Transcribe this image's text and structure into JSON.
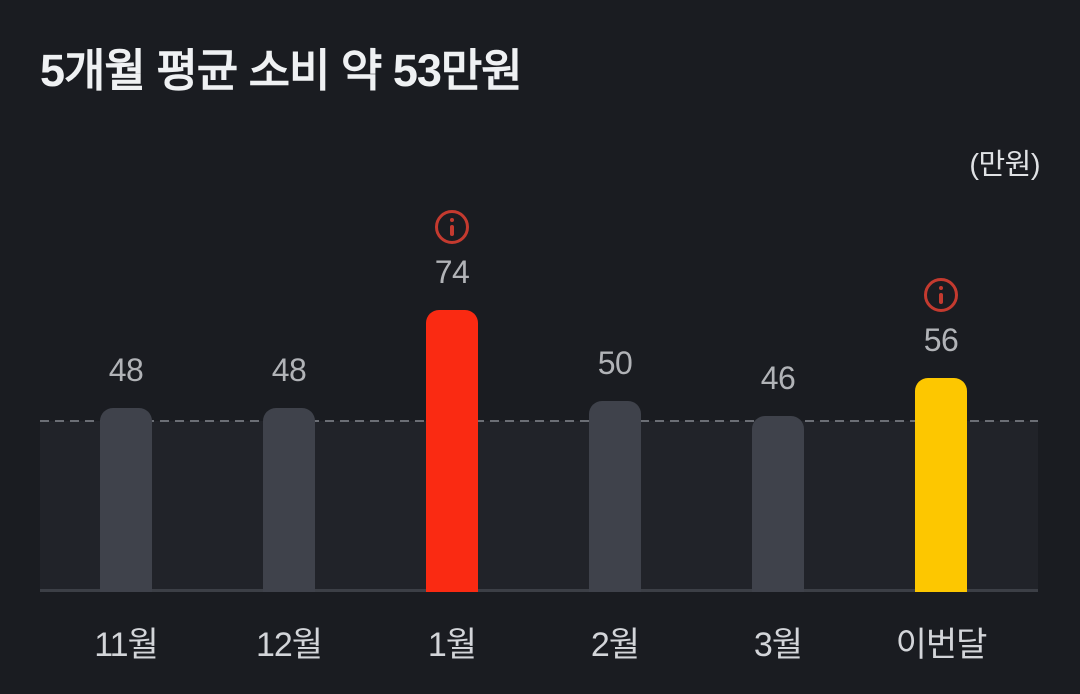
{
  "header": {
    "title": "5개월 평균 소비 약 53만원",
    "unit_label": "(만원)"
  },
  "colors": {
    "background": "#1A1C21",
    "band_background": "#212329",
    "baseline": "#3C3F46",
    "dashed_average_line": "#6B6E75",
    "bar_default": "#3F424B",
    "bar_highlight_red": "#FA2A12",
    "bar_highlight_yellow": "#FDC700",
    "value_label": "#B1B3B7",
    "axis_label": "#D3D5D9",
    "info_icon": "#C43A2F",
    "title_text": "#EFF1F3"
  },
  "chart_data": {
    "type": "bar",
    "title": "5개월 평균 소비 약 53만원",
    "unit": "만원",
    "ylabel": "(만원)",
    "categories": [
      "11월",
      "12월",
      "1월",
      "2월",
      "3월",
      "이번달"
    ],
    "values": [
      48,
      48,
      74,
      50,
      46,
      56
    ],
    "bar_colors": [
      "#3F424B",
      "#3F424B",
      "#FA2A12",
      "#3F424B",
      "#3F424B",
      "#FDC700"
    ],
    "info_markers": [
      false,
      false,
      true,
      false,
      false,
      true
    ],
    "average": 53,
    "average_line_style": "dashed",
    "ylim": [
      0,
      80
    ],
    "grid": false,
    "legend": false
  }
}
